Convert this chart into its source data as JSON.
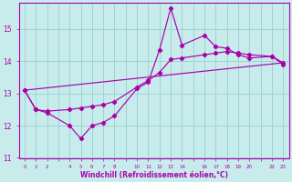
{
  "xlabel": "Windchill (Refroidissement éolien,°C)",
  "bg_color": "#c8ecec",
  "line_color": "#aa00aa",
  "xlim": [
    -0.5,
    23.5
  ],
  "ylim": [
    11,
    15.8
  ],
  "xticks_all": [
    0,
    1,
    2,
    3,
    4,
    5,
    6,
    7,
    8,
    9,
    10,
    11,
    12,
    13,
    14,
    15,
    16,
    17,
    18,
    19,
    20,
    21,
    22,
    23
  ],
  "xtick_labels": [
    "0",
    "1",
    "2",
    "",
    "4",
    "5",
    "6",
    "7",
    "8",
    "",
    "10",
    "11",
    "12",
    "13",
    "14",
    "",
    "16",
    "17",
    "18",
    "19",
    "20",
    "",
    "22",
    "23"
  ],
  "yticks": [
    11,
    12,
    13,
    14,
    15
  ],
  "grid_color": "#9dd4d4",
  "line1_x": [
    0,
    1,
    2,
    4,
    5,
    6,
    7,
    8,
    10,
    11,
    12,
    13,
    14,
    16,
    17,
    18,
    19,
    20,
    22,
    23
  ],
  "line1_y": [
    13.1,
    12.5,
    12.4,
    12.0,
    11.6,
    12.0,
    12.1,
    12.3,
    13.15,
    13.35,
    14.35,
    15.65,
    14.5,
    14.8,
    14.45,
    14.4,
    14.2,
    14.1,
    14.15,
    13.9
  ],
  "line2_x": [
    0,
    1,
    2,
    4,
    5,
    6,
    7,
    8,
    10,
    11,
    12,
    13,
    14,
    16,
    17,
    18,
    19,
    20,
    22,
    23
  ],
  "line2_y": [
    13.1,
    12.5,
    12.45,
    12.5,
    12.55,
    12.6,
    12.65,
    12.75,
    13.2,
    13.4,
    13.65,
    14.05,
    14.1,
    14.2,
    14.25,
    14.3,
    14.25,
    14.2,
    14.15,
    13.95
  ],
  "line3_x": [
    0,
    23
  ],
  "line3_y": [
    13.1,
    13.95
  ]
}
